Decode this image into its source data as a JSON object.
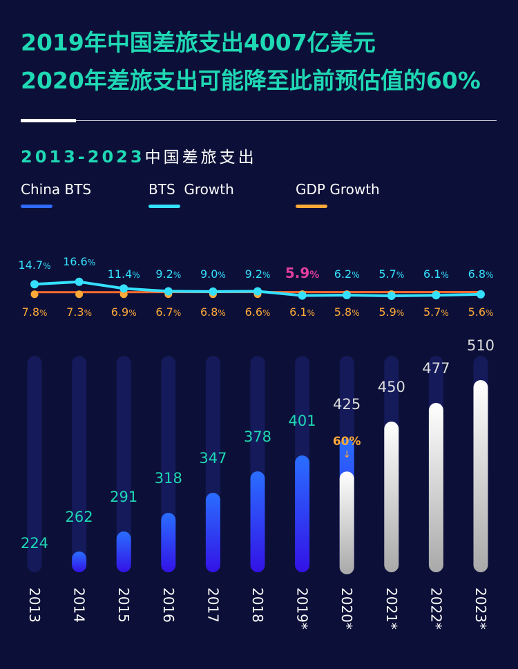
{
  "headline": {
    "line1": "2019年中国差旅支出4007亿美元",
    "line2": "2020年差旅支出可能降至此前预估值的60%"
  },
  "subtitle": {
    "years": "2013-2023",
    "text": "中国差旅支出"
  },
  "legend": [
    {
      "label": "China BTS",
      "color": "#2f6bff"
    },
    {
      "label": "BTS  Growth",
      "color": "#35e0ff"
    },
    {
      "label": "GDP Growth",
      "color": "#ffa938"
    }
  ],
  "chart_data": {
    "type": "bar",
    "categories": [
      "2013",
      "2014",
      "2015",
      "2016",
      "2017",
      "2018",
      "2019*",
      "2020*",
      "2021*",
      "2022*",
      "2023*"
    ],
    "bts_values": [
      224,
      262,
      291,
      318,
      347,
      378,
      401,
      425,
      450,
      477,
      510
    ],
    "forecast_from_index": 7,
    "bts_growth": [
      "14.7",
      "16.6",
      "11.4",
      "9.2",
      "9.0",
      "9.2",
      "5.9",
      "6.2",
      "5.7",
      "6.1",
      "6.8"
    ],
    "gdp_growth": [
      "7.8",
      "7.3",
      "6.9",
      "6.7",
      "6.8",
      "6.6",
      "6.1",
      "5.8",
      "5.9",
      "5.7",
      "5.6"
    ],
    "highlight_growth_index": 6,
    "percent_sign": "%",
    "annotation": {
      "index": 7,
      "label": "60%",
      "arrow": "↓",
      "value_fraction": 0.6
    },
    "colors": {
      "bar_actual_top": "#2a6eff",
      "bar_actual_bottom": "#3312e6",
      "bar_forecast_top": "#ffffff",
      "bar_forecast_bottom": "#a9a9a9",
      "track": "#141a5a",
      "actual_label": "#1fd8b4",
      "forecast_label": "#dcdcdc",
      "bts_growth": "#35e0ff",
      "gdp_growth": "#ffa938",
      "gdp_line": "#ff6b2e",
      "highlight": "#e23ea0",
      "annotation": "#ffa938"
    }
  }
}
